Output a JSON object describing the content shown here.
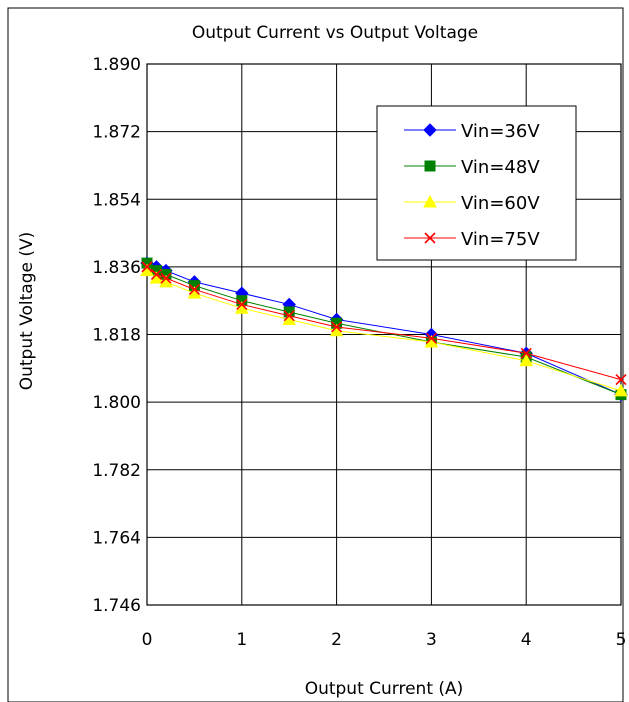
{
  "chart_data": {
    "type": "line",
    "title": "Output Current vs Output Voltage",
    "xlabel": "Output Current (A)",
    "ylabel": "Output Voltage (V)",
    "xlim": [
      0,
      5
    ],
    "ylim": [
      1.746,
      1.89
    ],
    "x_ticks": [
      0,
      1,
      2,
      3,
      4,
      5
    ],
    "y_ticks": [
      "1.890",
      "1.872",
      "1.854",
      "1.836",
      "1.818",
      "1.800",
      "1.782",
      "1.764",
      "1.746"
    ],
    "grid": true,
    "legend_position": "top-right",
    "series": [
      {
        "name": "Vin=36V",
        "color": "#0000ff",
        "marker": "diamond",
        "x": [
          0,
          0.1,
          0.2,
          0.5,
          1,
          1.5,
          2,
          3,
          4,
          5
        ],
        "y": [
          1.837,
          1.836,
          1.835,
          1.832,
          1.829,
          1.826,
          1.822,
          1.818,
          1.813,
          1.802
        ]
      },
      {
        "name": "Vin=48V",
        "color": "#008000",
        "marker": "square",
        "x": [
          0,
          0.1,
          0.2,
          0.5,
          1,
          1.5,
          2,
          3,
          4,
          5
        ],
        "y": [
          1.837,
          1.835,
          1.834,
          1.831,
          1.827,
          1.824,
          1.821,
          1.816,
          1.812,
          1.802
        ]
      },
      {
        "name": "Vin=60V",
        "color": "#ffff00",
        "marker": "triangle",
        "x": [
          0,
          0.1,
          0.2,
          0.5,
          1,
          1.5,
          2,
          3,
          4,
          5
        ],
        "y": [
          1.835,
          1.833,
          1.832,
          1.829,
          1.825,
          1.822,
          1.819,
          1.816,
          1.811,
          1.803
        ]
      },
      {
        "name": "Vin=75V",
        "color": "#ff0000",
        "marker": "x",
        "x": [
          0,
          0.1,
          0.2,
          0.5,
          1,
          1.5,
          2,
          3,
          4,
          5
        ],
        "y": [
          1.836,
          1.834,
          1.833,
          1.83,
          1.826,
          1.823,
          1.82,
          1.817,
          1.813,
          1.806
        ]
      }
    ]
  }
}
